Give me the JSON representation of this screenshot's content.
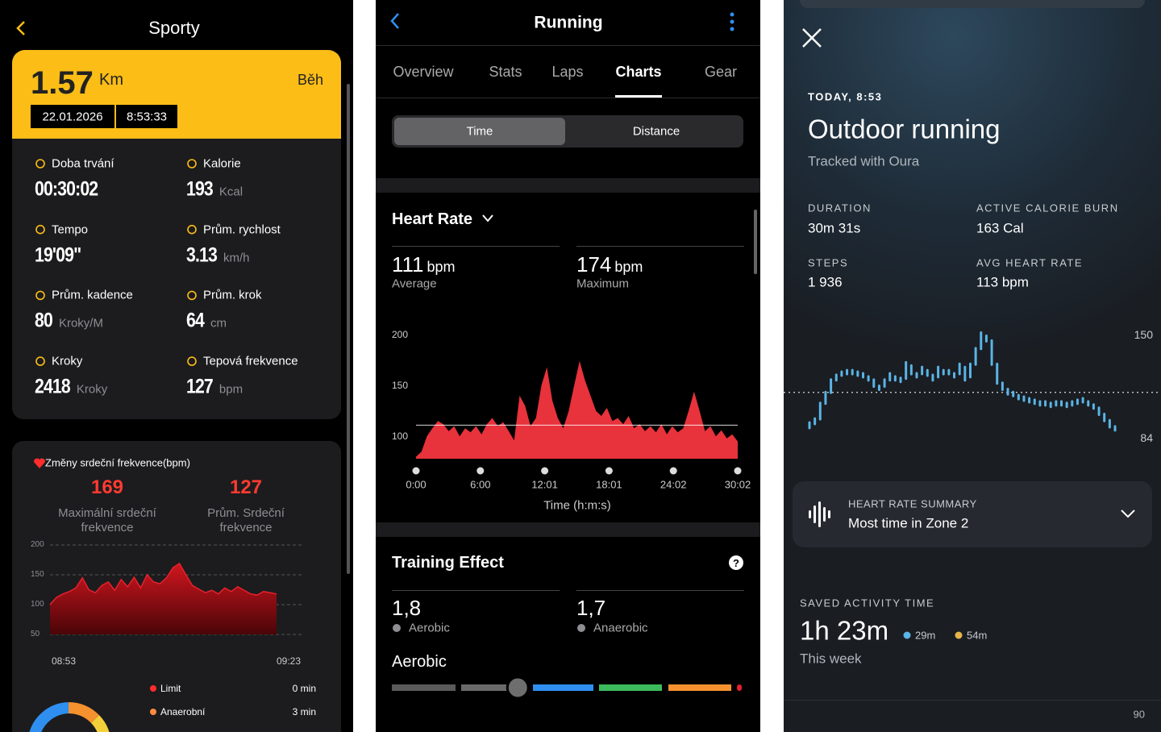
{
  "sporty": {
    "title": "Sporty",
    "summary": {
      "distance": "1.57",
      "unit": "Km",
      "activity": "Běh",
      "date": "22.01.2026",
      "start": "8:53:33"
    },
    "stats": [
      {
        "label": "Doba trvání",
        "value": "00:30:02"
      },
      {
        "label": "Kalorie",
        "value": "193",
        "unit": "Kcal"
      },
      {
        "label": "Tempo",
        "value": "19'09\""
      },
      {
        "label": "Prům. rychlost",
        "value": "3.13",
        "unit": "km/h"
      },
      {
        "label": "Prům. kadence",
        "value": "80",
        "unit": "Kroky/M"
      },
      {
        "label": "Prům. krok",
        "value": "64",
        "unit": "cm"
      },
      {
        "label": "Kroky",
        "value": "2418",
        "unit": "Kroky"
      },
      {
        "label": "Tepová frekvence",
        "value": "127",
        "unit": "bpm"
      }
    ],
    "heart": {
      "title": "Změny srdeční frekvence(bpm)",
      "max": {
        "value": "169",
        "label": "Maximální srdeční frekvence"
      },
      "avg": {
        "value": "127",
        "label": "Prům. Srdeční frekvence"
      },
      "chart": {
        "type": "area",
        "color": "#c8161d",
        "values": [
          100,
          112,
          118,
          122,
          128,
          145,
          125,
          120,
          132,
          138,
          124,
          142,
          130,
          146,
          128,
          150,
          138,
          135,
          145,
          162,
          169,
          150,
          132,
          126,
          120,
          124,
          118,
          128,
          122,
          130,
          124,
          118,
          116,
          122,
          120,
          118
        ],
        "ylim": [
          50,
          200
        ],
        "yticks": [
          200,
          150,
          100,
          50
        ],
        "grid": true,
        "x_labels": [
          "08:53",
          "09:23"
        ]
      },
      "zones": [
        {
          "name": "Limit",
          "time": "0 min",
          "color": "#ff2d2d"
        },
        {
          "name": "Anaerobní",
          "time": "3 min",
          "color": "#ff8c42"
        }
      ]
    }
  },
  "running": {
    "title": "Running",
    "tabs": [
      "Overview",
      "Stats",
      "Laps",
      "Charts",
      "Gear"
    ],
    "active_tab": 3,
    "toggle": [
      "Time",
      "Distance"
    ],
    "toggle_selected": 0,
    "heart_rate": {
      "title": "Heart Rate",
      "metrics": [
        {
          "value": 111,
          "unit": "bpm",
          "label": "Average"
        },
        {
          "value": 174,
          "unit": "bpm",
          "label": "Maximum"
        }
      ],
      "chart": {
        "type": "area",
        "color": "#e8323c",
        "values": [
          80,
          85,
          100,
          108,
          115,
          112,
          105,
          110,
          100,
          108,
          104,
          110,
          102,
          112,
          118,
          110,
          114,
          105,
          96,
          140,
          130,
          110,
          118,
          150,
          168,
          135,
          118,
          108,
          125,
          150,
          174,
          155,
          140,
          125,
          120,
          128,
          115,
          118,
          112,
          120,
          108,
          112,
          105,
          110,
          104,
          112,
          102,
          110,
          104,
          108,
          125,
          144,
          125,
          105,
          110,
          100,
          106,
          98,
          102,
          95
        ],
        "ylim": [
          78,
          208
        ],
        "yticks": [
          200,
          150,
          100
        ],
        "grid": false,
        "categories": [
          "0:00",
          "6:00",
          "12:01",
          "18:01",
          "24:02",
          "30:02"
        ],
        "xlabel": "Time (h:m:s)"
      }
    },
    "training": {
      "title": "Training Effect",
      "metrics": [
        {
          "value": 1.8,
          "label": "1,8",
          "name": "Aerobic"
        },
        {
          "value": 1.7,
          "label": "1,7",
          "name": "Anaerobic"
        }
      ],
      "scale": {
        "title": "Aerobic",
        "xlim": [
          0,
          5
        ],
        "colors": [
          "#5a5a5a",
          "#6a6a6a",
          "#2f8ff0",
          "#3dbb5c",
          "#f5912e",
          "#e8202c"
        ]
      }
    }
  },
  "oura": {
    "date": "TODAY, 8:53",
    "title": "Outdoor running",
    "subtitle": "Tracked with Oura",
    "stats": [
      {
        "label": "DURATION",
        "value": "30m 31s"
      },
      {
        "label": "ACTIVE CALORIE BURN",
        "value": "163 Cal"
      },
      {
        "label": "STEPS",
        "value": "1 936"
      },
      {
        "label": "AVG HEART RATE",
        "value": "113 bpm"
      }
    ],
    "chart": {
      "type": "bar",
      "color": "#5ab4e5",
      "values": [
        92,
        95,
        105,
        112,
        120,
        123,
        125,
        126,
        126,
        125,
        124,
        122,
        118,
        116,
        120,
        124,
        122,
        121,
        131,
        126,
        124,
        128,
        125,
        122,
        128,
        126,
        126,
        124,
        130,
        122,
        130,
        140,
        150,
        147,
        132,
        120,
        116,
        113,
        112,
        110,
        109,
        108,
        107,
        106,
        106,
        105,
        106,
        106,
        105,
        106,
        107,
        108,
        106,
        104,
        100,
        96,
        92,
        90
      ],
      "ylim": [
        82,
        153
      ],
      "yticks": [
        150,
        84
      ],
      "reference_line": 113
    },
    "summary": {
      "title": "HEART RATE SUMMARY",
      "text": "Most time in Zone 2"
    },
    "saved": {
      "title": "SAVED ACTIVITY TIME",
      "value": "1h 23m",
      "parts": [
        {
          "value": "29m",
          "color": "#5ab4e5"
        },
        {
          "value": "54m",
          "color": "#e8b54a"
        }
      ],
      "period": "This week"
    },
    "next_label": "90"
  }
}
